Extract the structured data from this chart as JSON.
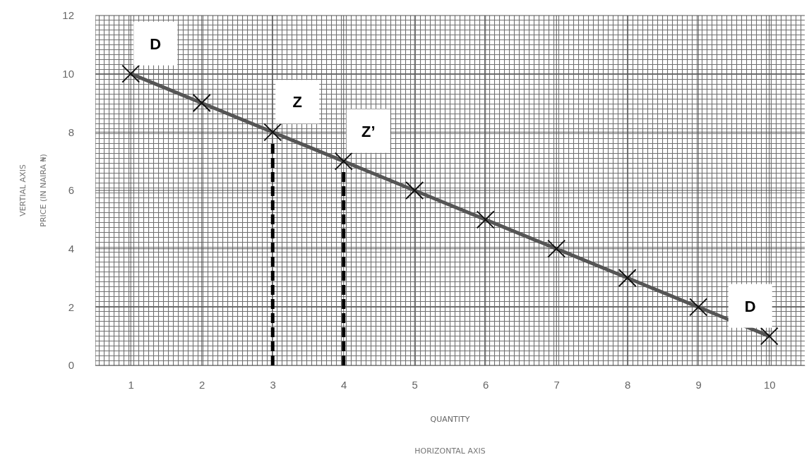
{
  "chart_data": {
    "type": "line",
    "xlabel": "QUANTITY",
    "ylabel": "PRICE (IN NAIRA ₦)",
    "x": [
      1,
      2,
      3,
      4,
      5,
      6,
      7,
      8,
      9,
      10
    ],
    "series": [
      {
        "color": "#555555",
        "values": [
          10,
          9,
          8,
          7,
          6,
          5,
          4,
          3,
          2,
          1
        ]
      }
    ],
    "xlim": [
      0.5,
      10.5
    ],
    "xticks": [
      1,
      2,
      3,
      4,
      5,
      6,
      7,
      8,
      9,
      10
    ],
    "ylim": [
      0,
      12
    ],
    "yticks": [
      0,
      2,
      4,
      6,
      8,
      10,
      12
    ],
    "grid": true,
    "marker": "cross",
    "line_style": "solid",
    "ref_lines": [
      {
        "axis": "x",
        "value": 3,
        "color": "#000000",
        "line_style": "dashed"
      },
      {
        "axis": "x",
        "value": 4,
        "color": "#000000",
        "line_style": "dashed"
      }
    ],
    "annotations": [
      {
        "text": "D",
        "x": 1,
        "y": 10
      },
      {
        "text": "Z",
        "x": 3,
        "y": 8
      },
      {
        "text": "Z’",
        "x": 4,
        "y": 7
      },
      {
        "text": "D",
        "x": 10,
        "y": 1
      },
      "HORIZONTAL AXIS",
      "VERTIAL AXIS"
    ]
  }
}
